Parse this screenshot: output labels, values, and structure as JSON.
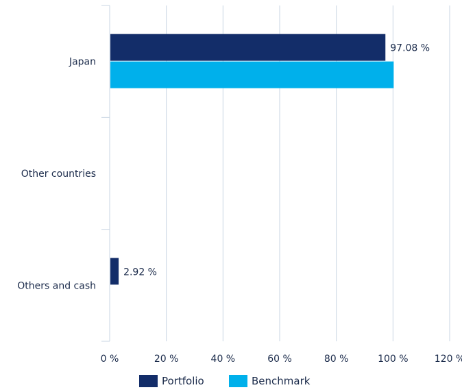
{
  "chart_data": {
    "type": "bar",
    "orientation": "horizontal",
    "categories": [
      "Japan",
      "Other countries",
      "Others and cash"
    ],
    "series": [
      {
        "name": "Portfolio",
        "color": "#132d69",
        "values": [
          97.08,
          0,
          2.92
        ]
      },
      {
        "name": "Benchmark",
        "color": "#00b0eb",
        "values": [
          100,
          0,
          0
        ]
      }
    ],
    "data_labels": {
      "Portfolio": [
        "97.08 %",
        "",
        "2.92 %"
      ]
    },
    "x_ticks": [
      "0 %",
      "20 %",
      "40 %",
      "60 %",
      "80 %",
      "100 %",
      "120 %"
    ],
    "xlim": [
      0,
      120
    ],
    "grid": "vertical",
    "legend_position": "bottom"
  }
}
